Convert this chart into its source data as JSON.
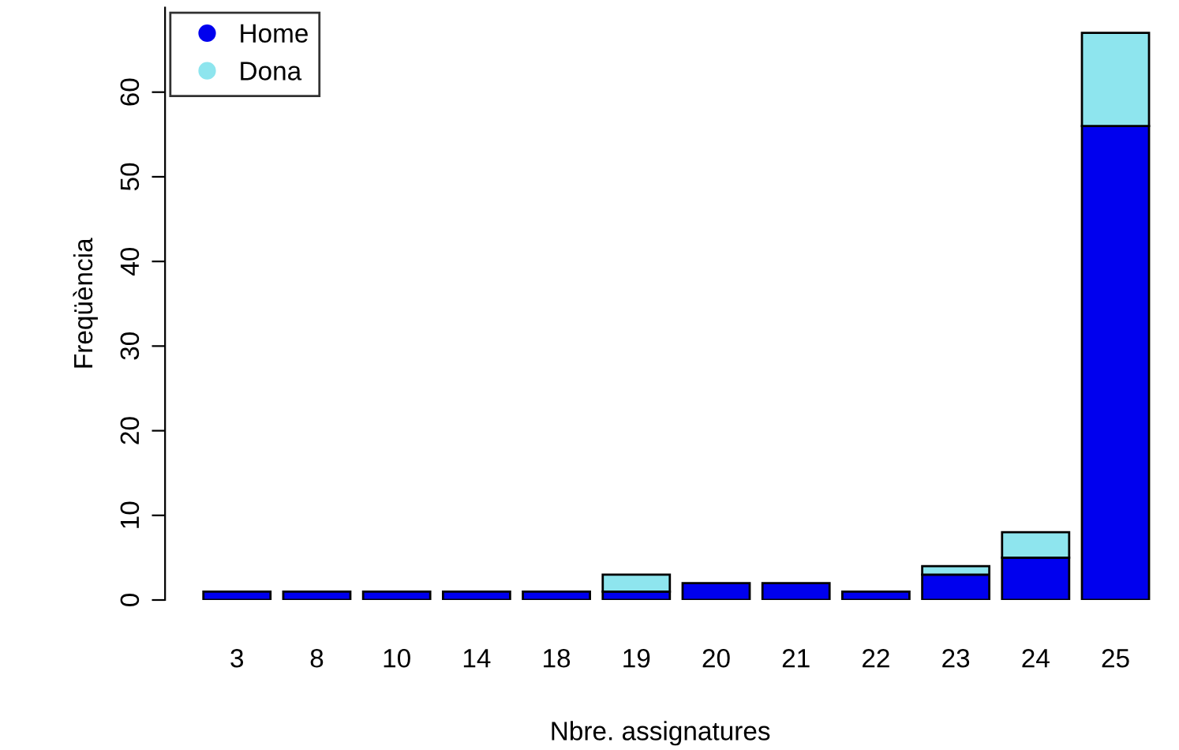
{
  "chart_data": {
    "type": "bar",
    "stacked": true,
    "xlabel": "Nbre. assignatures",
    "ylabel": "Freqüència",
    "categories": [
      "3",
      "8",
      "10",
      "14",
      "18",
      "19",
      "20",
      "21",
      "22",
      "23",
      "24",
      "25"
    ],
    "series": [
      {
        "name": "Home",
        "color": "#0000ee",
        "values": [
          1,
          1,
          1,
          1,
          1,
          1,
          2,
          2,
          1,
          3,
          5,
          56
        ]
      },
      {
        "name": "Dona",
        "color": "#8ee5ee",
        "values": [
          null,
          null,
          null,
          null,
          null,
          2,
          null,
          null,
          null,
          1,
          3,
          11
        ]
      }
    ],
    "ylim": [
      0,
      70
    ],
    "yticks": [
      0,
      10,
      20,
      30,
      40,
      50,
      60
    ],
    "grid": false,
    "legend": "top left",
    "marker": "circle"
  }
}
